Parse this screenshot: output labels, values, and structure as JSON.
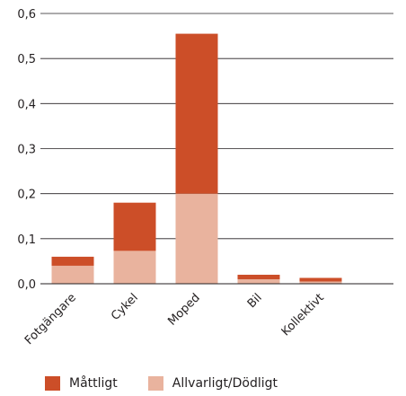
{
  "chart_data": {
    "type": "bar",
    "stacked": true,
    "categories": [
      "Fotgängare",
      "Cykel",
      "Moped",
      "Bil",
      "Kollektivt"
    ],
    "series": [
      {
        "name": "Allvarligt/Dödligt",
        "color": "#e9b39e",
        "values": [
          0.04,
          0.073,
          0.2,
          0.01,
          0.005
        ]
      },
      {
        "name": "Måttligt",
        "color": "#cc4e28",
        "values": [
          0.02,
          0.107,
          0.355,
          0.01,
          0.008
        ]
      }
    ],
    "ylim": [
      0,
      0.6
    ],
    "yticks": [
      "0,0",
      "0,1",
      "0,2",
      "0,3",
      "0,4",
      "0,5",
      "0,6"
    ],
    "grid": true,
    "title": "",
    "xlabel": "",
    "ylabel": ""
  },
  "legend": {
    "items": [
      {
        "label": "Måttligt",
        "color": "#cc4e28"
      },
      {
        "label": "Allvarligt/Dödligt",
        "color": "#e9b39e"
      }
    ]
  }
}
